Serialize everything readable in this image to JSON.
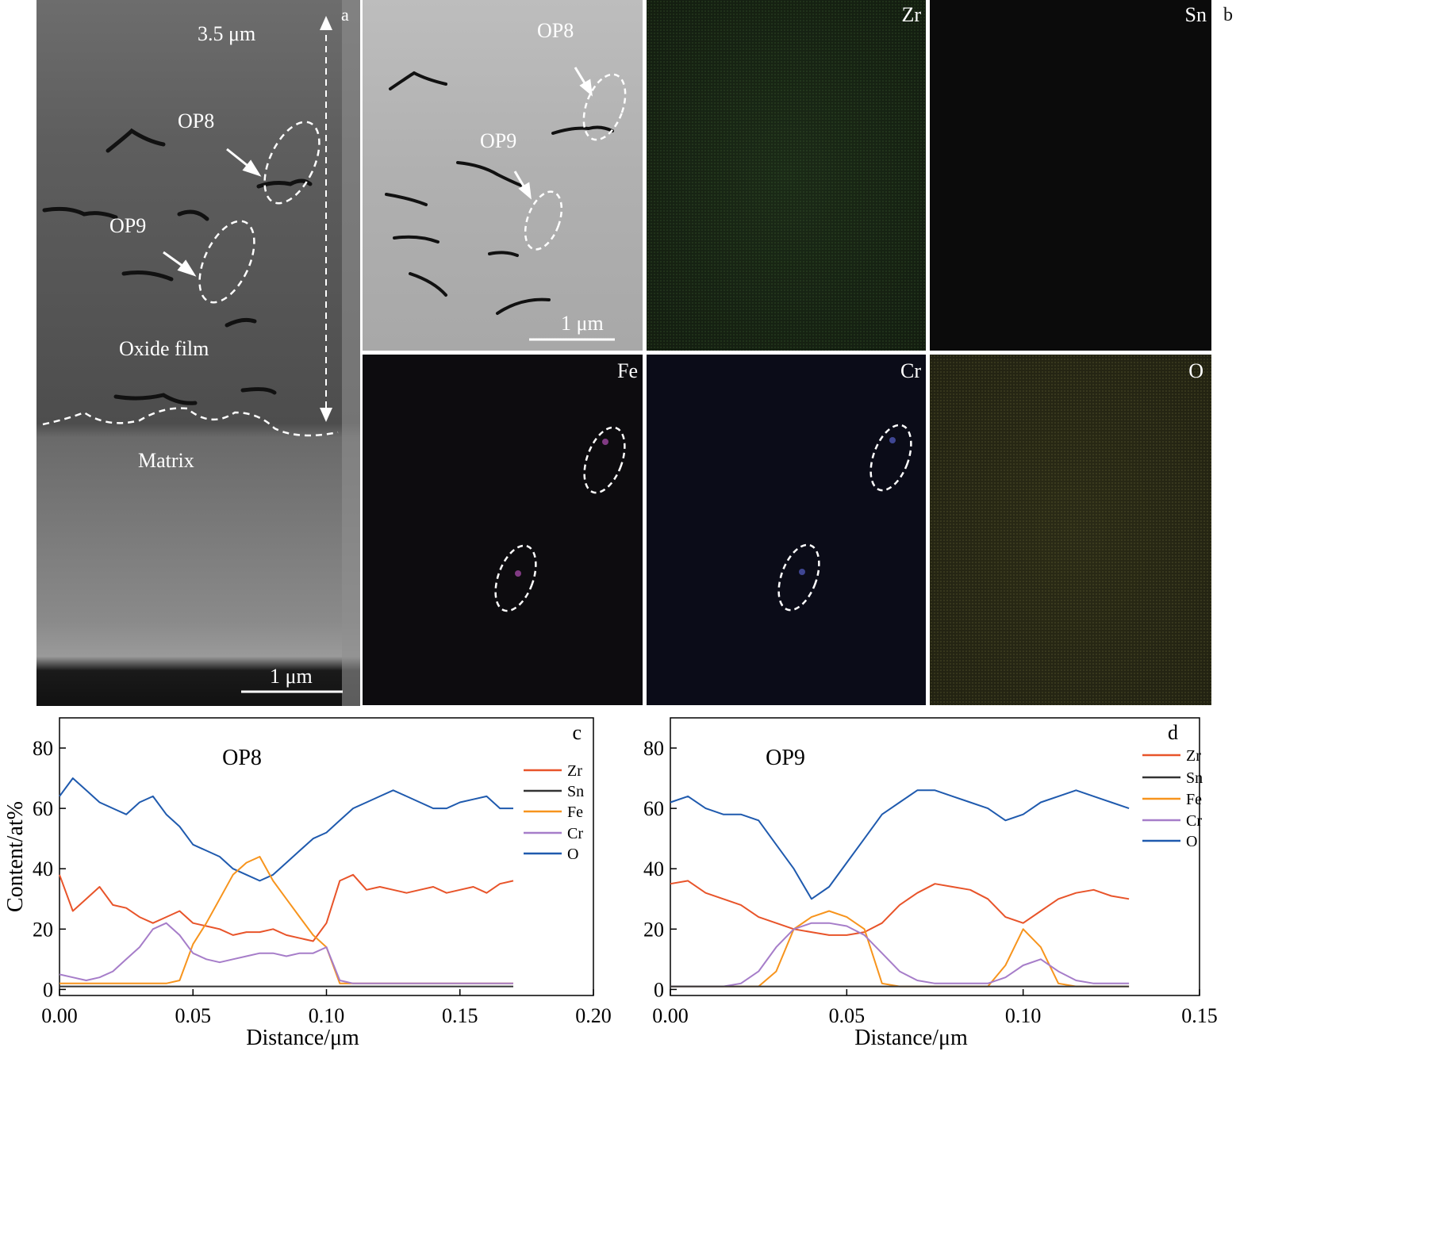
{
  "panel_a": {
    "letter": "a",
    "thickness": "3.5 μm",
    "op8": "OP8",
    "op9": "OP9",
    "oxide": "Oxide film",
    "matrix": "Matrix",
    "scale": "1 μm"
  },
  "panel_b": {
    "letter": "b",
    "sem": {
      "op8": "OP8",
      "op9": "OP9",
      "scale": "1 μm"
    },
    "maps": {
      "zr": "Zr",
      "sn": "Sn",
      "fe": "Fe",
      "cr": "Cr",
      "o": "O"
    }
  },
  "colors": {
    "Zr": "#e8542a",
    "Sn": "#333333",
    "Fe": "#f7941d",
    "Cr": "#a67dc9",
    "O": "#1f5aae"
  },
  "chart_data": [
    {
      "type": "line",
      "panel": "c",
      "title": "OP8",
      "xlabel": "Distance/μm",
      "ylabel": "Content/at%",
      "xlim": [
        0,
        0.2
      ],
      "ylim": [
        -2,
        90
      ],
      "xticks": [
        "0.00",
        "0.05",
        "0.10",
        "0.15",
        "0.20"
      ],
      "yticks": [
        "0",
        "20",
        "40",
        "60",
        "80"
      ],
      "legend": "right",
      "x": [
        0.0,
        0.005,
        0.01,
        0.015,
        0.02,
        0.025,
        0.03,
        0.035,
        0.04,
        0.045,
        0.05,
        0.055,
        0.06,
        0.065,
        0.07,
        0.075,
        0.08,
        0.085,
        0.09,
        0.095,
        0.1,
        0.105,
        0.11,
        0.115,
        0.12,
        0.125,
        0.13,
        0.135,
        0.14,
        0.145,
        0.15,
        0.155,
        0.16,
        0.165,
        0.17
      ],
      "series": [
        {
          "name": "Zr",
          "values": [
            38,
            26,
            30,
            34,
            28,
            27,
            24,
            22,
            24,
            26,
            22,
            21,
            20,
            18,
            19,
            19,
            20,
            18,
            17,
            16,
            22,
            36,
            38,
            33,
            34,
            33,
            32,
            33,
            34,
            32,
            33,
            34,
            32,
            35,
            36
          ]
        },
        {
          "name": "Sn",
          "values": [
            1,
            1,
            1,
            1,
            1,
            1,
            1,
            1,
            1,
            1,
            1,
            1,
            1,
            1,
            1,
            1,
            1,
            1,
            1,
            1,
            1,
            1,
            1,
            1,
            1,
            1,
            1,
            1,
            1,
            1,
            1,
            1,
            1,
            1,
            1
          ]
        },
        {
          "name": "Fe",
          "values": [
            2,
            2,
            2,
            2,
            2,
            2,
            2,
            2,
            2,
            3,
            15,
            22,
            30,
            38,
            42,
            44,
            36,
            30,
            24,
            18,
            14,
            2,
            2,
            2,
            2,
            2,
            2,
            2,
            2,
            2,
            2,
            2,
            2,
            2,
            2
          ]
        },
        {
          "name": "Cr",
          "values": [
            5,
            4,
            3,
            4,
            6,
            10,
            14,
            20,
            22,
            18,
            12,
            10,
            9,
            10,
            11,
            12,
            12,
            11,
            12,
            12,
            14,
            3,
            2,
            2,
            2,
            2,
            2,
            2,
            2,
            2,
            2,
            2,
            2,
            2,
            2
          ]
        },
        {
          "name": "O",
          "values": [
            64,
            70,
            66,
            62,
            60,
            58,
            62,
            64,
            58,
            54,
            48,
            46,
            44,
            40,
            38,
            36,
            38,
            42,
            46,
            50,
            52,
            56,
            60,
            62,
            64,
            66,
            64,
            62,
            60,
            60,
            62,
            63,
            64,
            60,
            60
          ]
        }
      ]
    },
    {
      "type": "line",
      "panel": "d",
      "title": "OP9",
      "xlabel": "Distance/μm",
      "ylabel": "",
      "xlim": [
        0,
        0.15
      ],
      "ylim": [
        -2,
        90
      ],
      "xticks": [
        "0.00",
        "0.05",
        "0.10",
        "0.15"
      ],
      "yticks": [
        "0",
        "20",
        "40",
        "60",
        "80"
      ],
      "legend": "right",
      "x": [
        0.0,
        0.005,
        0.01,
        0.015,
        0.02,
        0.025,
        0.03,
        0.035,
        0.04,
        0.045,
        0.05,
        0.055,
        0.06,
        0.065,
        0.07,
        0.075,
        0.08,
        0.085,
        0.09,
        0.095,
        0.1,
        0.105,
        0.11,
        0.115,
        0.12,
        0.125,
        0.13
      ],
      "series": [
        {
          "name": "Zr",
          "values": [
            35,
            36,
            32,
            30,
            28,
            24,
            22,
            20,
            19,
            18,
            18,
            19,
            22,
            28,
            32,
            35,
            34,
            33,
            30,
            24,
            22,
            26,
            30,
            32,
            33,
            31,
            30
          ]
        },
        {
          "name": "Sn",
          "values": [
            1,
            1,
            1,
            1,
            1,
            1,
            1,
            1,
            1,
            1,
            1,
            1,
            1,
            1,
            1,
            1,
            1,
            1,
            1,
            1,
            1,
            1,
            1,
            1,
            1,
            1,
            1
          ]
        },
        {
          "name": "Fe",
          "values": [
            1,
            1,
            1,
            1,
            1,
            1,
            6,
            20,
            24,
            26,
            24,
            20,
            2,
            1,
            1,
            1,
            1,
            1,
            1,
            8,
            20,
            14,
            2,
            1,
            1,
            1,
            1
          ]
        },
        {
          "name": "Cr",
          "values": [
            1,
            1,
            1,
            1,
            2,
            6,
            14,
            20,
            22,
            22,
            21,
            18,
            12,
            6,
            3,
            2,
            2,
            2,
            2,
            4,
            8,
            10,
            6,
            3,
            2,
            2,
            2
          ]
        },
        {
          "name": "O",
          "values": [
            62,
            64,
            60,
            58,
            58,
            56,
            48,
            40,
            30,
            34,
            42,
            50,
            58,
            62,
            66,
            66,
            64,
            62,
            60,
            56,
            58,
            62,
            64,
            66,
            64,
            62,
            60
          ]
        }
      ]
    }
  ]
}
